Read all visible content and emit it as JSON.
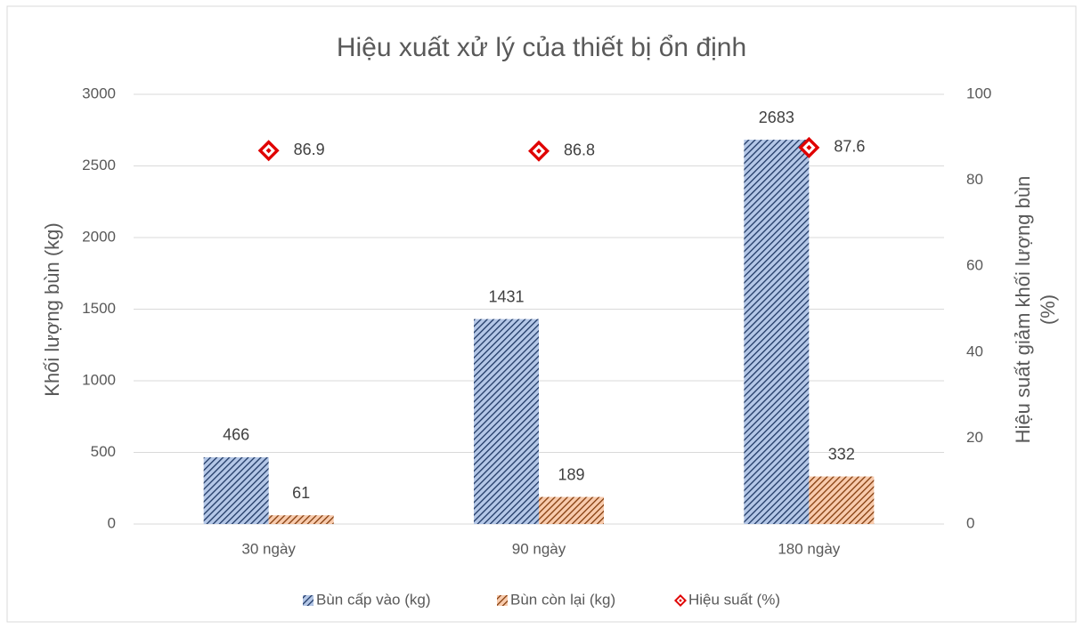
{
  "chart_data": {
    "type": "bar",
    "title": "Hiệu xuất xử lý của thiết bị ổn định",
    "y_label": "Khối lượng bùn (kg)",
    "y2_label": [
      "Hiệu suất giảm khối lượng bùn",
      "(%)"
    ],
    "categories": [
      "30 ngày",
      "90 ngày",
      "180 ngày"
    ],
    "series": [
      {
        "name": "Bùn cấp vào (kg)",
        "type": "bar",
        "color": "#1f3864",
        "values": [
          466,
          1431,
          2683
        ]
      },
      {
        "name": "Bùn còn lại (kg)",
        "type": "bar",
        "color": "#843c0c",
        "values": [
          61,
          189,
          332
        ]
      },
      {
        "name": "Hiệu suất (%)",
        "type": "scatter",
        "axis": "y2",
        "color": "#e00000",
        "values": [
          86.9,
          86.8,
          87.6
        ]
      }
    ],
    "ylim": [
      0,
      3000
    ],
    "yticks": [
      0,
      500,
      1000,
      1500,
      2000,
      2500,
      3000
    ],
    "y2lim": [
      0,
      100
    ],
    "y2ticks": [
      0,
      20,
      40,
      60,
      80,
      100
    ],
    "grid": true,
    "legend": "bottom"
  }
}
